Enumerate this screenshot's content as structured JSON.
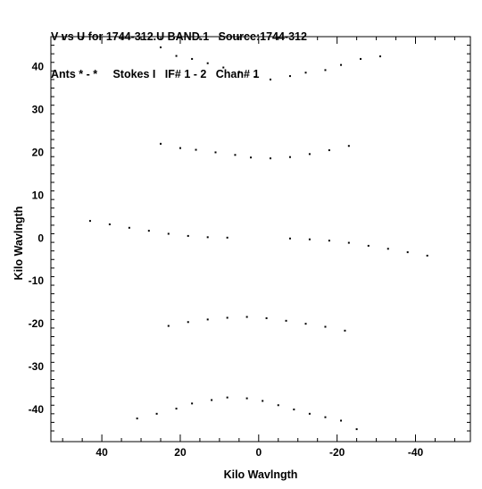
{
  "header": {
    "line1": "V vs U for 1744-312.U BAND.1   Source:1744-312",
    "line2": "Ants * - *     Stokes I   IF# 1 - 2   Chan# 1"
  },
  "chart_data": {
    "type": "scatter",
    "title": "V vs U for 1744-312.U BAND.1   Source:1744-312",
    "subtitle": "Ants * - *     Stokes I   IF# 1 - 2   Chan# 1",
    "xlabel": "Kilo Wavlngth",
    "ylabel": "Kilo Wavlngth",
    "xlim": [
      53,
      -54
    ],
    "ylim": [
      -47.5,
      47
    ],
    "x_reversed": true,
    "x_ticks": [
      40,
      20,
      0,
      -20,
      -40
    ],
    "x_tick_labels": [
      "40",
      "20",
      "0",
      "-20",
      "-40"
    ],
    "y_ticks": [
      40,
      30,
      20,
      10,
      0,
      -10,
      -20,
      -30,
      -40
    ],
    "y_tick_labels": [
      "40",
      "30",
      "20",
      "10",
      "0",
      "-10",
      "-20",
      "-30",
      "-40"
    ],
    "grid": false,
    "marker_color": "#000000",
    "points": [
      {
        "x": 25,
        "y": 44.5
      },
      {
        "x": 21,
        "y": 42.5
      },
      {
        "x": 17,
        "y": 41.8
      },
      {
        "x": 13,
        "y": 40.8
      },
      {
        "x": 9,
        "y": 39.8
      },
      {
        "x": 5,
        "y": 38.8
      },
      {
        "x": 1,
        "y": 37.6
      },
      {
        "x": -3,
        "y": 37.0
      },
      {
        "x": -8,
        "y": 37.8
      },
      {
        "x": -12,
        "y": 38.6
      },
      {
        "x": -17,
        "y": 39.2
      },
      {
        "x": -21,
        "y": 40.4
      },
      {
        "x": -26,
        "y": 41.8
      },
      {
        "x": -31,
        "y": 42.4
      },
      {
        "x": 25,
        "y": 22
      },
      {
        "x": 20,
        "y": 21
      },
      {
        "x": 16,
        "y": 20.6
      },
      {
        "x": 11,
        "y": 20.0
      },
      {
        "x": 6,
        "y": 19.4
      },
      {
        "x": 2,
        "y": 18.8
      },
      {
        "x": -3,
        "y": 18.6
      },
      {
        "x": -8,
        "y": 18.9
      },
      {
        "x": -13,
        "y": 19.6
      },
      {
        "x": -18,
        "y": 20.5
      },
      {
        "x": -23,
        "y": 21.5
      },
      {
        "x": 43,
        "y": 4
      },
      {
        "x": 38,
        "y": 3.2
      },
      {
        "x": 33,
        "y": 2.4
      },
      {
        "x": 28,
        "y": 1.7
      },
      {
        "x": 23,
        "y": 1.0
      },
      {
        "x": 18,
        "y": 0.5
      },
      {
        "x": 13,
        "y": 0.2
      },
      {
        "x": 8,
        "y": 0.1
      },
      {
        "x": -8,
        "y": -0.1
      },
      {
        "x": -13,
        "y": -0.3
      },
      {
        "x": -18,
        "y": -0.6
      },
      {
        "x": -23,
        "y": -1.1
      },
      {
        "x": -28,
        "y": -1.8
      },
      {
        "x": -33,
        "y": -2.5
      },
      {
        "x": -38,
        "y": -3.3
      },
      {
        "x": -43,
        "y": -4.1
      },
      {
        "x": 23,
        "y": -20.5
      },
      {
        "x": 18,
        "y": -19.6
      },
      {
        "x": 13,
        "y": -19.0
      },
      {
        "x": 8,
        "y": -18.6
      },
      {
        "x": 3,
        "y": -18.4
      },
      {
        "x": -2,
        "y": -18.7
      },
      {
        "x": -7,
        "y": -19.3
      },
      {
        "x": -12,
        "y": -20.0
      },
      {
        "x": -17,
        "y": -20.7
      },
      {
        "x": -22,
        "y": -21.6
      },
      {
        "x": 31,
        "y": -42.1
      },
      {
        "x": 26,
        "y": -41.0
      },
      {
        "x": 21,
        "y": -39.8
      },
      {
        "x": 17,
        "y": -38.6
      },
      {
        "x": 12,
        "y": -37.8
      },
      {
        "x": 8,
        "y": -37.2
      },
      {
        "x": 3,
        "y": -37.4
      },
      {
        "x": -1,
        "y": -38.0
      },
      {
        "x": -5,
        "y": -39.0
      },
      {
        "x": -9,
        "y": -40.0
      },
      {
        "x": -13,
        "y": -41.0
      },
      {
        "x": -17,
        "y": -41.8
      },
      {
        "x": -21,
        "y": -42.6
      },
      {
        "x": -25,
        "y": -44.6
      }
    ]
  }
}
